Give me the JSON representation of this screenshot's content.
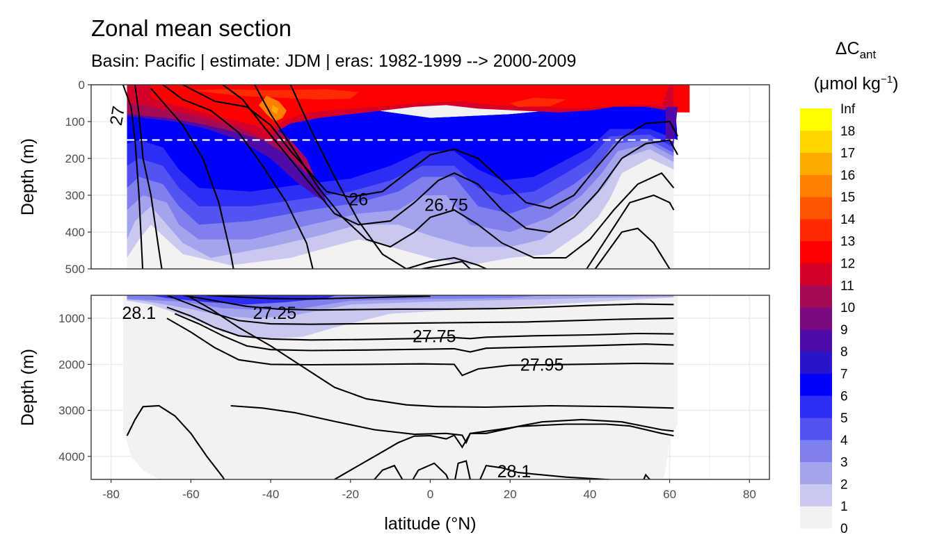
{
  "chart_data": {
    "type": "heatmap",
    "title": "Zonal mean section",
    "subtitle": "Basin: Pacific | estimate: JDM  | eras: 1982-1999 --> 2000-2009",
    "xlabel": "latitude (°N)",
    "ylabel": "Depth (m)",
    "legend": {
      "title_main": "ΔC",
      "title_sub": "ant",
      "unit_main": "(μmol kg",
      "unit_sup": "−1",
      "unit_end": ")",
      "placement": "right",
      "bins": [
        {
          "label": "0",
          "color": "#f2f2f2"
        },
        {
          "label": "1",
          "color": "#c8c8f0"
        },
        {
          "label": "2",
          "color": "#a4a4ee"
        },
        {
          "label": "3",
          "color": "#7f7fee"
        },
        {
          "label": "4",
          "color": "#5353f2"
        },
        {
          "label": "5",
          "color": "#2d2df4"
        },
        {
          "label": "6",
          "color": "#0000ff"
        },
        {
          "label": "7",
          "color": "#2a14c9"
        },
        {
          "label": "8",
          "color": "#4f0aa8"
        },
        {
          "label": "9",
          "color": "#7b0a80"
        },
        {
          "label": "10",
          "color": "#a70a55"
        },
        {
          "label": "11",
          "color": "#d4002a"
        },
        {
          "label": "12",
          "color": "#ff0000"
        },
        {
          "label": "13",
          "color": "#ff2a00"
        },
        {
          "label": "14",
          "color": "#ff5500"
        },
        {
          "label": "15",
          "color": "#ff8000"
        },
        {
          "label": "16",
          "color": "#ffaa00"
        },
        {
          "label": "17",
          "color": "#ffd500"
        },
        {
          "label": "18",
          "color": "#ffff00"
        },
        {
          "label": "Inf",
          "color": "#ffff00"
        }
      ]
    },
    "x_axis": {
      "ticks": [
        -80,
        -60,
        -40,
        -20,
        0,
        20,
        40,
        60,
        80
      ],
      "labels": [
        "-80",
        "-60",
        "-40",
        "-20",
        "0",
        "20",
        "40",
        "60",
        "80"
      ],
      "range": [
        -85,
        85
      ]
    },
    "panels": [
      {
        "name": "upper",
        "ylim": [
          0,
          500
        ],
        "y_ticks": [
          0,
          100,
          200,
          300,
          400,
          500
        ],
        "y_labels": [
          "0",
          "100",
          "200",
          "300",
          "400",
          "500"
        ],
        "reference_line_depth": 150,
        "isopycnal_labels": [
          {
            "text": "26",
            "lat": -18,
            "depth": 310
          },
          {
            "text": "26.75",
            "lat": 4,
            "depth": 325
          },
          {
            "text": "27",
            "lat": -77,
            "depth": 70
          }
        ]
      },
      {
        "name": "lower",
        "ylim": [
          500,
          4500
        ],
        "y_ticks": [
          1000,
          2000,
          3000,
          4000
        ],
        "y_labels": [
          "1000",
          "2000",
          "3000",
          "4000"
        ],
        "isopycnal_labels": [
          {
            "text": "28.1",
            "lat": -73,
            "depth": 880
          },
          {
            "text": "27.25",
            "lat": -39,
            "depth": 880
          },
          {
            "text": "27.75",
            "lat": 1,
            "depth": 1380
          },
          {
            "text": "27.95",
            "lat": 28,
            "depth": 2000
          },
          {
            "text": "28.1",
            "lat": 21,
            "depth": 4320
          }
        ]
      }
    ]
  }
}
